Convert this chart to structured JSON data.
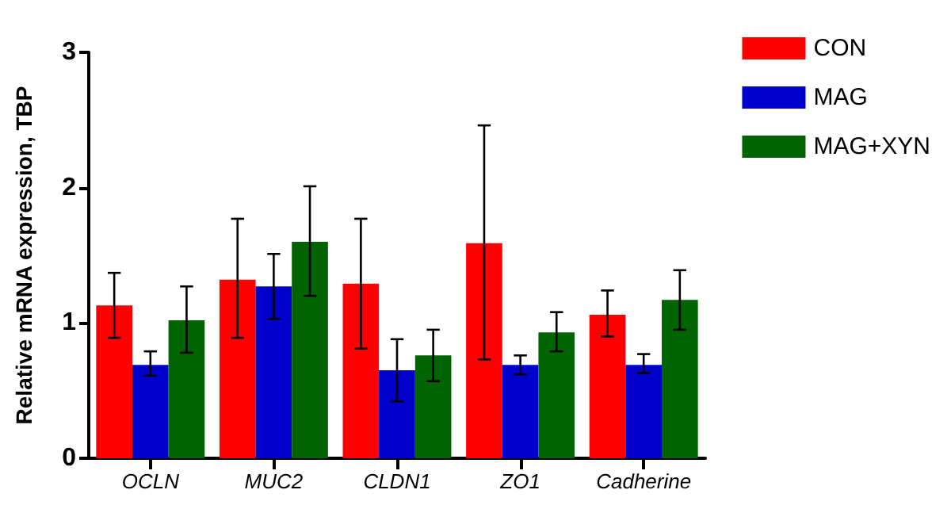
{
  "chart_data": {
    "type": "bar",
    "ylabel": "Relative mRNA expression, TBP",
    "categories": [
      "OCLN",
      "MUC2",
      "CLDN1",
      "ZO1",
      "Cadherine"
    ],
    "series": [
      {
        "name": "CON",
        "color": "#ff0000",
        "values": [
          1.13,
          1.32,
          1.29,
          1.59,
          1.06
        ],
        "errors": [
          [
            0.89,
            1.37
          ],
          [
            0.89,
            1.77
          ],
          [
            0.81,
            1.77
          ],
          [
            0.73,
            2.46
          ],
          [
            0.9,
            1.24
          ]
        ]
      },
      {
        "name": "MAG",
        "color": "#0000cc",
        "values": [
          0.69,
          1.27,
          0.65,
          0.69,
          0.69
        ],
        "errors": [
          [
            0.61,
            0.79
          ],
          [
            1.03,
            1.51
          ],
          [
            0.42,
            0.88
          ],
          [
            0.62,
            0.76
          ],
          [
            0.63,
            0.77
          ]
        ]
      },
      {
        "name": "MAG+XYN",
        "color": "#006400",
        "values": [
          1.02,
          1.6,
          0.76,
          0.93,
          1.17
        ],
        "errors": [
          [
            0.78,
            1.27
          ],
          [
            1.2,
            2.01
          ],
          [
            0.57,
            0.95
          ],
          [
            0.79,
            1.08
          ],
          [
            0.95,
            1.39
          ]
        ]
      }
    ],
    "ylim": [
      0,
      3
    ],
    "yticks": [
      0,
      1,
      2,
      3
    ],
    "grid": false,
    "legend": "right"
  }
}
